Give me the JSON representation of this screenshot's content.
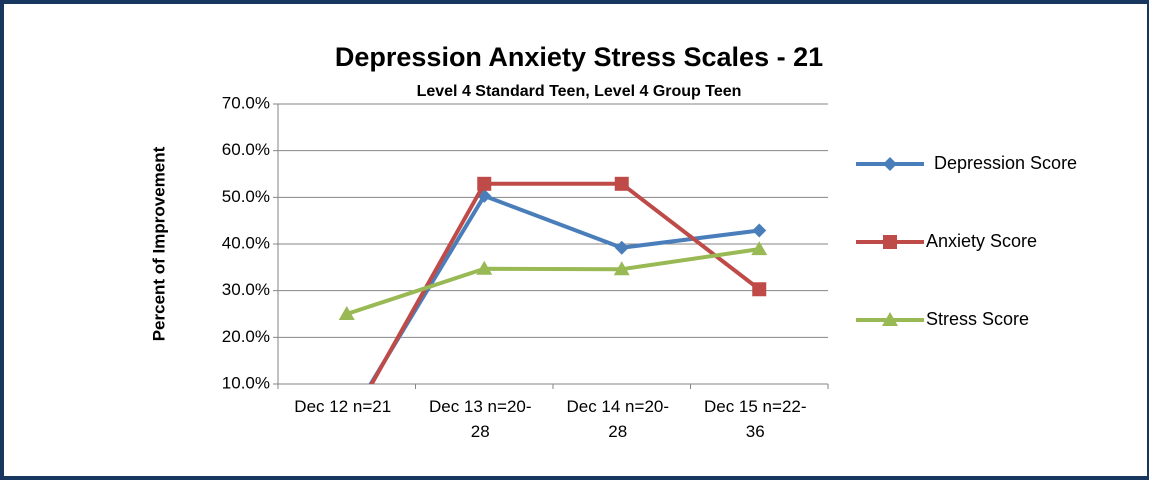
{
  "chart_data": {
    "type": "line",
    "title": "Depression Anxiety Stress Scales - 21",
    "subtitle": "Level 4 Standard Teen, Level 4 Group Teen",
    "y_label": "Percent of Improvement",
    "categories": [
      "Dec 12 n=21",
      "Dec 13 n=20-28",
      "Dec 14 n=20-28",
      "Dec 15 n=22-36"
    ],
    "series": [
      {
        "name": "Depression Score",
        "color": "#4a7ebb",
        "marker": "diamond",
        "values": [
          1.5,
          50.3,
          39.2,
          42.9
        ]
      },
      {
        "name": "Anxiety Score",
        "color": "#be4b48",
        "marker": "square",
        "values": [
          0.5,
          52.9,
          52.9,
          30.3
        ]
      },
      {
        "name": "Stress Score",
        "color": "#98b954",
        "marker": "triangle",
        "values": [
          25.0,
          34.7,
          34.6,
          38.9
        ]
      }
    ],
    "ylim": [
      10,
      70
    ],
    "yticks": [
      {
        "value": 10,
        "label": "10.0%"
      },
      {
        "value": 20,
        "label": "20.0%"
      },
      {
        "value": 30,
        "label": "30.0%"
      },
      {
        "value": 40,
        "label": "40.0%"
      },
      {
        "value": 50,
        "label": "50.0%"
      },
      {
        "value": 60,
        "label": "60.0%"
      },
      {
        "value": 70,
        "label": "70.0%"
      }
    ],
    "grid": true,
    "legend": "right"
  }
}
